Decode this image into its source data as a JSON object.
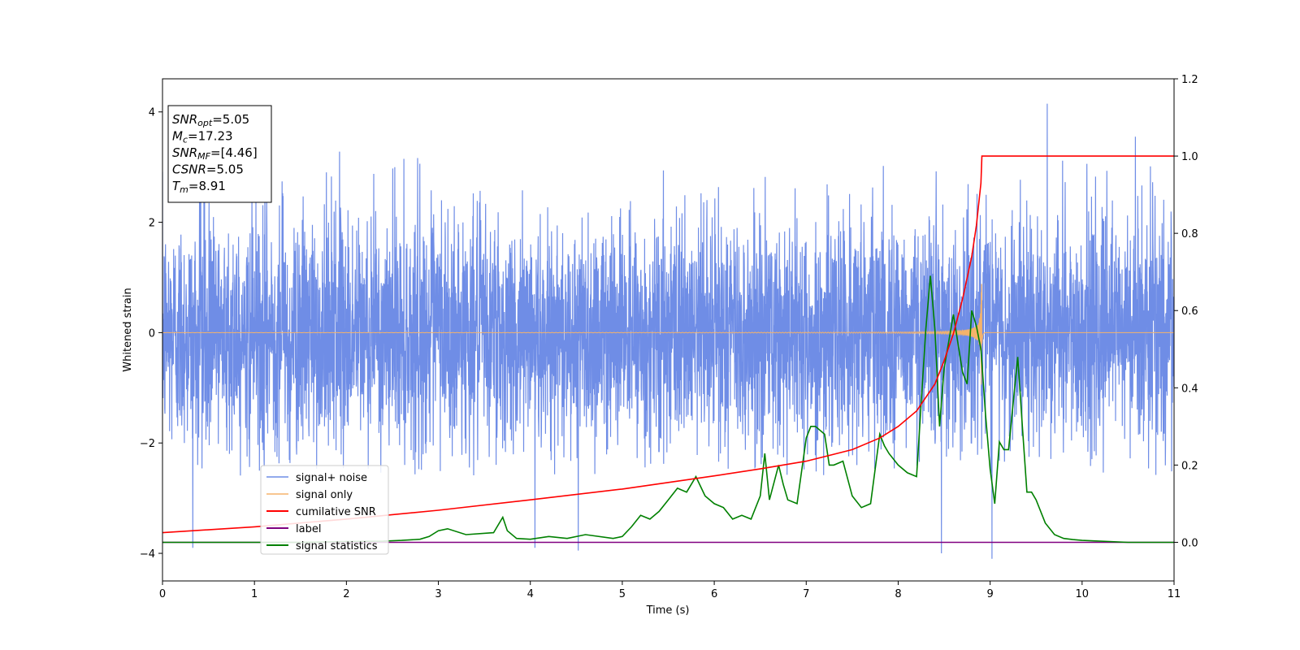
{
  "chart_data": {
    "type": "line",
    "title": "",
    "xlabel": "Time (s)",
    "ylabel": "Whitened strain",
    "xlim": [
      0,
      11
    ],
    "ylim": [
      -4.5,
      4.6
    ],
    "y2lim": [
      -0.1,
      1.2
    ],
    "grid": false,
    "legend_position": "lower-left",
    "x_ticks": [
      "0",
      "1",
      "2",
      "3",
      "4",
      "5",
      "6",
      "7",
      "8",
      "9",
      "10",
      "11"
    ],
    "y_ticks": [
      "4",
      "2",
      "0",
      "−2",
      "−4"
    ],
    "y2_ticks": [
      "1.2",
      "1.0",
      "0.8",
      "0.6",
      "0.4",
      "0.2",
      "0.0"
    ],
    "colors": {
      "noise": "#6f8de6",
      "signal": "#f5b36b",
      "csnr": "#ff0000",
      "label": "#800080",
      "stats": "#008000"
    },
    "info_box": [
      {
        "name": "SNR",
        "sub": "opt",
        "value": "=5.05"
      },
      {
        "name": "M",
        "sub": "c",
        "value": "=17.23"
      },
      {
        "name": "SNR",
        "sub": "MF",
        "value": "=[4.46]"
      },
      {
        "name": "CSNR",
        "sub": "",
        "value": "=5.05"
      },
      {
        "name": "T",
        "sub": "m",
        "value": "=8.91"
      }
    ],
    "series": [
      {
        "name": "signal+ noise",
        "axis": "left",
        "description_only": true,
        "noise_band": [
          -2.6,
          3.3
        ],
        "extremes": [
          [
            0.33,
            -3.9
          ],
          [
            4.05,
            -3.9
          ],
          [
            4.52,
            -3.95
          ],
          [
            8.47,
            -4.0
          ],
          [
            9.02,
            -4.1
          ],
          [
            9.62,
            4.15
          ],
          [
            10.58,
            3.55
          ]
        ]
      },
      {
        "name": "signal only",
        "axis": "left",
        "t_merge": 8.91,
        "peak_amplitude": 1.05
      },
      {
        "name": "cumilative SNR",
        "axis": "right",
        "x": [
          0,
          1,
          2,
          3,
          4,
          5,
          5.5,
          6,
          6.5,
          7,
          7.5,
          7.8,
          8.0,
          8.2,
          8.4,
          8.5,
          8.6,
          8.7,
          8.8,
          8.85,
          8.9,
          8.91,
          11
        ],
        "y": [
          0.025,
          0.04,
          0.06,
          0.083,
          0.11,
          0.138,
          0.155,
          0.172,
          0.19,
          0.21,
          0.24,
          0.27,
          0.3,
          0.34,
          0.41,
          0.47,
          0.54,
          0.63,
          0.74,
          0.82,
          0.93,
          1.0,
          1.0
        ]
      },
      {
        "name": "label",
        "axis": "right",
        "x": [
          0,
          11
        ],
        "y": [
          0,
          0
        ]
      },
      {
        "name": "signal statistics",
        "axis": "right",
        "x": [
          0,
          0.5,
          1,
          1.5,
          2,
          2.4,
          2.6,
          2.8,
          2.9,
          3.0,
          3.1,
          3.3,
          3.6,
          3.7,
          3.75,
          3.85,
          4.0,
          4.2,
          4.4,
          4.6,
          4.9,
          5.0,
          5.1,
          5.2,
          5.3,
          5.4,
          5.5,
          5.6,
          5.7,
          5.8,
          5.9,
          6.0,
          6.1,
          6.2,
          6.3,
          6.4,
          6.5,
          6.55,
          6.6,
          6.7,
          6.75,
          6.8,
          6.9,
          7.0,
          7.05,
          7.1,
          7.2,
          7.25,
          7.3,
          7.4,
          7.5,
          7.6,
          7.7,
          7.8,
          7.85,
          7.9,
          8.0,
          8.1,
          8.2,
          8.3,
          8.35,
          8.4,
          8.45,
          8.5,
          8.55,
          8.6,
          8.7,
          8.75,
          8.8,
          8.85,
          8.9,
          8.95,
          9.0,
          9.05,
          9.1,
          9.15,
          9.2,
          9.3,
          9.35,
          9.4,
          9.45,
          9.5,
          9.6,
          9.7,
          9.8,
          9.9,
          10.0,
          10.5,
          11.0
        ],
        "y": [
          0.0,
          0.0,
          0.0,
          0.0,
          0.002,
          0.003,
          0.005,
          0.008,
          0.015,
          0.03,
          0.035,
          0.02,
          0.025,
          0.065,
          0.03,
          0.01,
          0.008,
          0.015,
          0.01,
          0.02,
          0.01,
          0.015,
          0.04,
          0.07,
          0.06,
          0.08,
          0.11,
          0.14,
          0.13,
          0.17,
          0.12,
          0.1,
          0.09,
          0.06,
          0.07,
          0.06,
          0.12,
          0.23,
          0.11,
          0.2,
          0.15,
          0.11,
          0.1,
          0.27,
          0.3,
          0.3,
          0.28,
          0.2,
          0.2,
          0.21,
          0.12,
          0.09,
          0.1,
          0.28,
          0.25,
          0.23,
          0.2,
          0.18,
          0.17,
          0.55,
          0.69,
          0.55,
          0.3,
          0.45,
          0.52,
          0.59,
          0.44,
          0.41,
          0.6,
          0.56,
          0.5,
          0.33,
          0.19,
          0.1,
          0.26,
          0.24,
          0.24,
          0.48,
          0.3,
          0.13,
          0.13,
          0.11,
          0.05,
          0.02,
          0.01,
          0.007,
          0.005,
          0.0,
          0.0
        ]
      }
    ]
  }
}
